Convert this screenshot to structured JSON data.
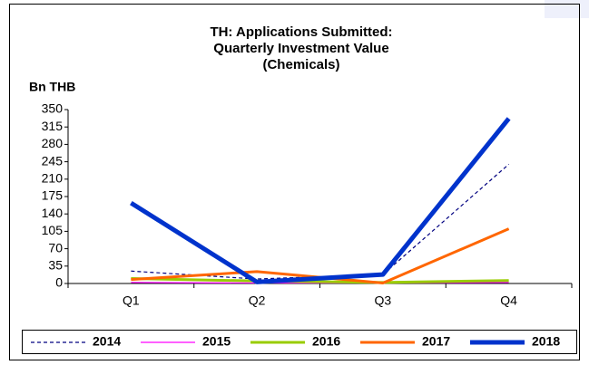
{
  "chart_data": {
    "type": "line",
    "title": [
      "TH: Applications Submitted:",
      "Quarterly Investment Value",
      "(Chemicals)"
    ],
    "y_label": "Bn THB",
    "categories": [
      "Q1",
      "Q2",
      "Q3",
      "Q4"
    ],
    "series": [
      {
        "name": "2014",
        "color": "#000080",
        "line_style": "dashed",
        "linewidth": 1.2,
        "values": [
          25,
          9,
          18,
          240
        ]
      },
      {
        "name": "2015",
        "color": "#ff00ff",
        "line_style": "solid",
        "linewidth": 1.2,
        "values": [
          2,
          1,
          1,
          2
        ]
      },
      {
        "name": "2016",
        "color": "#99cc00",
        "line_style": "solid",
        "linewidth": 3,
        "values": [
          10,
          5,
          2,
          6
        ]
      },
      {
        "name": "2017",
        "color": "#ff6600",
        "line_style": "solid",
        "linewidth": 3,
        "values": [
          8,
          24,
          1,
          110
        ]
      },
      {
        "name": "2018",
        "color": "#0033cc",
        "line_style": "solid",
        "linewidth": 5,
        "values": [
          162,
          3,
          18,
          332
        ]
      }
    ],
    "ylim": [
      0,
      350
    ],
    "yticks": [
      0,
      35,
      70,
      105,
      140,
      175,
      210,
      245,
      280,
      315,
      350
    ],
    "legend": "bottom"
  }
}
